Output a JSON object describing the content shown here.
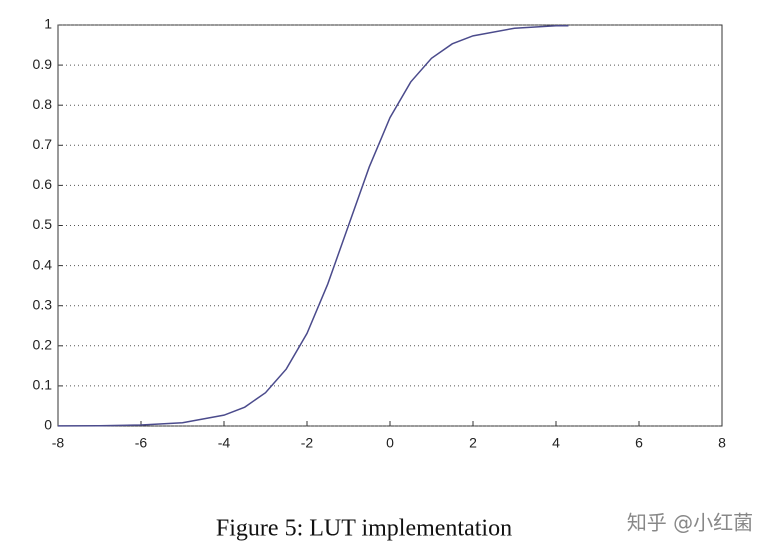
{
  "chart_data": {
    "type": "line",
    "caption": "Figure 5:  LUT implementation",
    "watermark": "知乎 @小红菌",
    "x": [
      -8,
      -7,
      -6,
      -5,
      -4,
      -3.5,
      -3,
      -2.5,
      -2,
      -1.5,
      -1,
      -0.5,
      0,
      0.5,
      1,
      1.5,
      2,
      3,
      4,
      4.3
    ],
    "series": [
      {
        "color": "#4b4b8c",
        "values": [
          0.0002,
          0.0007,
          0.0025,
          0.008,
          0.027,
          0.047,
          0.083,
          0.142,
          0.231,
          0.354,
          0.5,
          0.646,
          0.769,
          0.858,
          0.917,
          0.953,
          0.973,
          0.992,
          0.998,
          0.998
        ]
      }
    ],
    "xlim": [
      -8,
      8
    ],
    "xticks": [
      -8,
      -6,
      -4,
      -2,
      0,
      2,
      4,
      6,
      8
    ],
    "ylim": [
      0,
      1
    ],
    "yticks": [
      0,
      0.1,
      0.2,
      0.3,
      0.4,
      0.5,
      0.6,
      0.7,
      0.8,
      0.9,
      1
    ],
    "grid": true
  }
}
